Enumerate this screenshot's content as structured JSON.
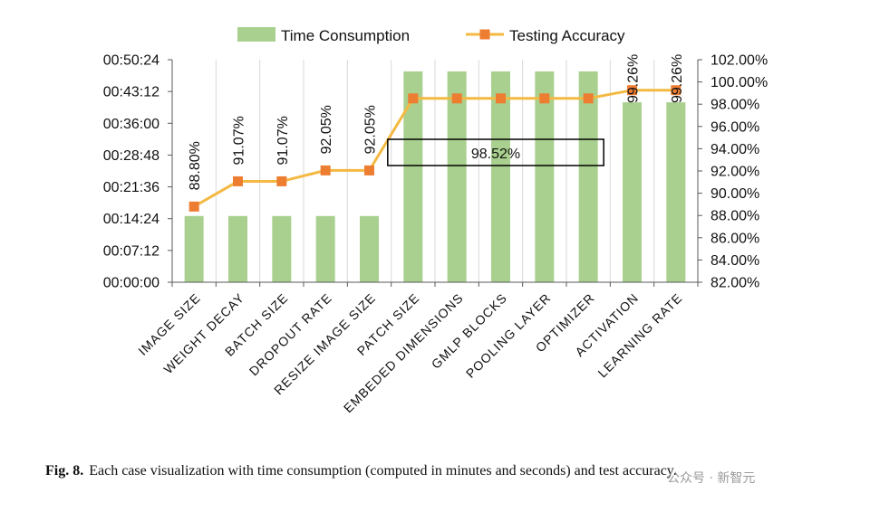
{
  "chart_data": {
    "type": "bar+line",
    "categories": [
      "IMAGE SIZE",
      "WEIGHT DECAY",
      "BATCH SIZE",
      "DROPOUT RATE",
      "RESIZE IMAGE SIZE",
      "PATCH SIZE",
      "EMBEDED DIMENSIONS",
      "GMLP BLOCKS",
      "POOLING LAYER",
      "OPTIMIZER",
      "ACTIVATION",
      "LEARNING RATE"
    ],
    "series": [
      {
        "name": "Time Consumption",
        "kind": "bar",
        "axis": "left",
        "color": "#a9d08e",
        "values": [
          "00:15:00",
          "00:15:00",
          "00:15:00",
          "00:15:00",
          "00:15:00",
          "00:47:45",
          "00:47:45",
          "00:47:45",
          "00:47:45",
          "00:47:45",
          "00:40:45",
          "00:40:45"
        ]
      },
      {
        "name": "Testing Accuracy",
        "kind": "line",
        "axis": "right",
        "color": "#f4b942",
        "marker_color": "#ed7d31",
        "values": [
          88.8,
          91.07,
          91.07,
          92.05,
          92.05,
          98.52,
          98.52,
          98.52,
          98.52,
          98.52,
          99.26,
          99.26
        ]
      }
    ],
    "data_labels": [
      {
        "index": 0,
        "text": "88.80%"
      },
      {
        "index": 1,
        "text": "91.07%"
      },
      {
        "index": 2,
        "text": "91.07%"
      },
      {
        "index": 3,
        "text": "92.05%"
      },
      {
        "index": 4,
        "text": "92.05%"
      },
      {
        "index": 10,
        "text": "99.26%"
      },
      {
        "index": 11,
        "text": "99.26%"
      }
    ],
    "boxed_label": {
      "text": "98.52%",
      "from_index": 5,
      "to_index": 9
    },
    "left_axis": {
      "ticks": [
        "00:00:00",
        "00:07:12",
        "00:14:24",
        "00:21:36",
        "00:28:48",
        "00:36:00",
        "00:43:12",
        "00:50:24"
      ],
      "ylim": [
        "00:00:00",
        "00:50:24"
      ]
    },
    "right_axis": {
      "ticks": [
        "82.00%",
        "84.00%",
        "86.00%",
        "88.00%",
        "90.00%",
        "92.00%",
        "94.00%",
        "96.00%",
        "98.00%",
        "100.00%",
        "102.00%"
      ],
      "ylim": [
        82,
        102
      ]
    },
    "legend_position": "top",
    "grid": "vertical-category-lines"
  },
  "caption": {
    "label": "Fig. 8.",
    "text": "Each case visualization with time consumption (computed in minutes and seconds) and test accuracy."
  },
  "watermark": "公众号 · 新智元"
}
